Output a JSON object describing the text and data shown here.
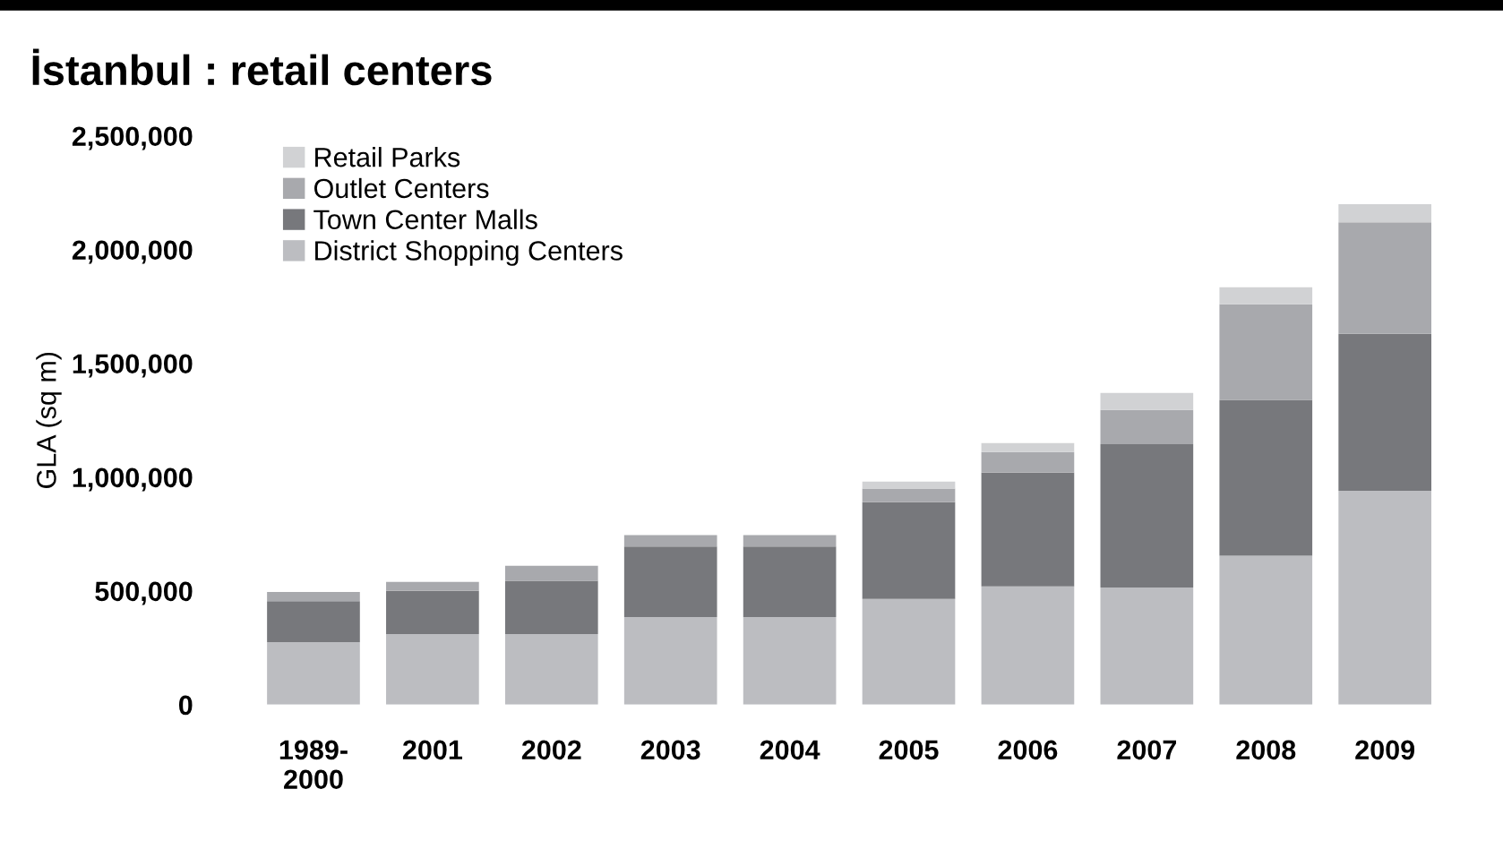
{
  "chart_data": {
    "type": "bar",
    "title": "İstanbul : retail centers",
    "ylabel": "GLA (sq m)",
    "categories": [
      "1989-\n2000",
      "2001",
      "2002",
      "2003",
      "2004",
      "2005",
      "2006",
      "2007",
      "2008",
      "2009"
    ],
    "stacked": true,
    "series": [
      {
        "name": "District Shopping Centers",
        "color": "#bcbdc1",
        "values": [
          275000,
          310000,
          310000,
          385000,
          385000,
          465000,
          520000,
          515000,
          655000,
          940000
        ]
      },
      {
        "name": "Town Center Malls",
        "color": "#77787c",
        "values": [
          180000,
          190000,
          235000,
          310000,
          310000,
          425000,
          500000,
          630000,
          685000,
          690000
        ]
      },
      {
        "name": "Outlet Centers",
        "color": "#a8a9ad",
        "values": [
          40000,
          40000,
          65000,
          50000,
          50000,
          60000,
          90000,
          150000,
          420000,
          490000
        ]
      },
      {
        "name": "Retail Parks",
        "color": "#d1d2d4",
        "values": [
          0,
          0,
          0,
          0,
          0,
          30000,
          40000,
          75000,
          75000,
          80000
        ]
      }
    ],
    "ylim": [
      0,
      2500000
    ],
    "yticks": [
      {
        "value": 0,
        "label": "0"
      },
      {
        "value": 500000,
        "label": "500,000"
      },
      {
        "value": 1000000,
        "label": "1,000,000"
      },
      {
        "value": 1500000,
        "label": "1,500,000"
      },
      {
        "value": 2000000,
        "label": "2,000,000"
      },
      {
        "value": 2500000,
        "label": "2,500,000"
      }
    ],
    "grid": false,
    "legend": "top left"
  }
}
